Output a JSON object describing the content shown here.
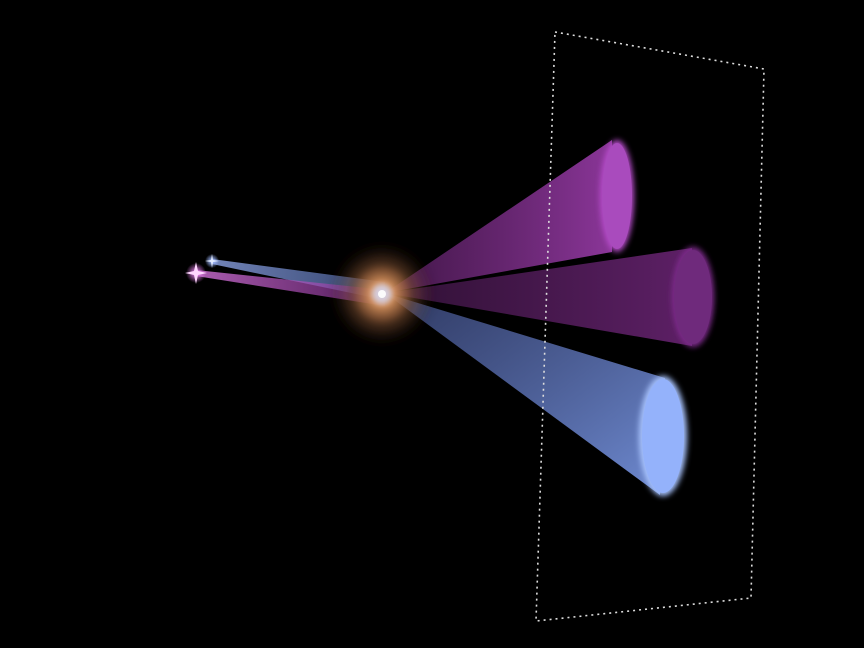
{
  "scene": {
    "background": "#000000",
    "sources": [
      {
        "name": "violet-star",
        "color": "#e07ae6"
      },
      {
        "name": "blue-star",
        "color": "#9fb8ff"
      }
    ],
    "lens": {
      "name": "galaxy-cluster",
      "color": "#d8955a"
    },
    "beams": [
      {
        "name": "upper-violet-beam",
        "color": "#a23fb2",
        "end_color": "#b54cc9"
      },
      {
        "name": "middle-violet-beam",
        "color": "#6d2577",
        "end_color": "#7e2c8c"
      },
      {
        "name": "lower-blue-beam",
        "color": "#6e8ee6",
        "end_color": "#a9c4ff"
      }
    ],
    "detector_plane": {
      "name": "observer-plane",
      "style": "dotted-outline",
      "color": "#dddddd"
    }
  }
}
